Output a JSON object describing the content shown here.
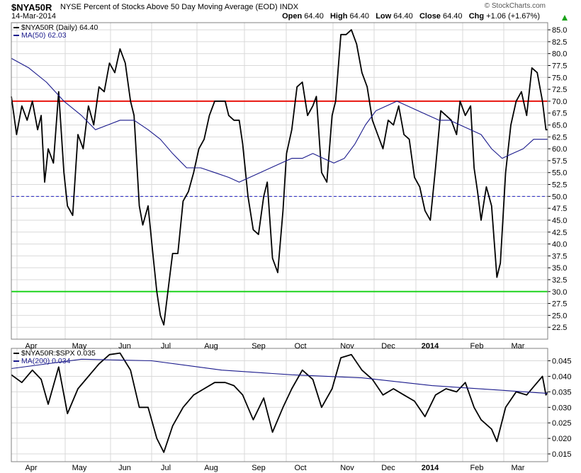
{
  "header": {
    "symbol": "$NYA50R",
    "description": "NYSE Percent of Stocks Above 50 Day Moving Average (EOD)  INDX",
    "date": "14-Mar-2014",
    "brand": "© StockCharts.com",
    "open_label": "Open",
    "open": "64.40",
    "high_label": "High",
    "high": "64.40",
    "low_label": "Low",
    "low": "64.40",
    "close_label": "Close",
    "close": "64.40",
    "chg_label": "Chg",
    "chg": "+1.06 (+1.67%)"
  },
  "colors": {
    "price": "#000000",
    "ma": "#1a1a8c",
    "upper": "#e8140e",
    "lower": "#1ed41e",
    "mid": "#1f1fbf",
    "grid": "#d9d9d9"
  },
  "chart_data": [
    {
      "type": "line",
      "legend": [
        "$NYA50R (Daily) 64.40",
        "MA(50) 62.03"
      ],
      "x_labels": [
        "Apr",
        "May",
        "Jun",
        "Jul",
        "Aug",
        "Sep",
        "Oct",
        "Nov",
        "Dec",
        "2014",
        "Feb",
        "Mar"
      ],
      "ylim": [
        20,
        86.5
      ],
      "y_ticks": [
        "22.5",
        "25.0",
        "27.5",
        "30.0",
        "32.5",
        "35.0",
        "37.5",
        "40.0",
        "42.5",
        "45.0",
        "47.5",
        "50.0",
        "52.5",
        "55.0",
        "57.5",
        "60.0",
        "62.5",
        "65.0",
        "67.5",
        "70.0",
        "72.5",
        "75.0",
        "77.5",
        "80.0",
        "82.5",
        "85.0"
      ],
      "reference_lines": [
        {
          "value": 70,
          "color": "#e8140e",
          "style": "solid"
        },
        {
          "value": 50,
          "color": "#1f1fbf",
          "style": "dashed"
        },
        {
          "value": 30,
          "color": "#1ed41e",
          "style": "solid"
        }
      ],
      "series": [
        {
          "name": "$NYA50R (Daily)",
          "color": "#000000",
          "points": [
            [
              0,
              71
            ],
            [
              3,
              63
            ],
            [
              6,
              69
            ],
            [
              9,
              66
            ],
            [
              12,
              70
            ],
            [
              15,
              64
            ],
            [
              17,
              67
            ],
            [
              19,
              53
            ],
            [
              21,
              60
            ],
            [
              24,
              57
            ],
            [
              27,
              72
            ],
            [
              30,
              55
            ],
            [
              32,
              48
            ],
            [
              35,
              46
            ],
            [
              38,
              63
            ],
            [
              41,
              60
            ],
            [
              44,
              69
            ],
            [
              47,
              65
            ],
            [
              50,
              73
            ],
            [
              53,
              72
            ],
            [
              56,
              78
            ],
            [
              59,
              76
            ],
            [
              62,
              81
            ],
            [
              65,
              78
            ],
            [
              68,
              70
            ],
            [
              70,
              67
            ],
            [
              73,
              48
            ],
            [
              75,
              44
            ],
            [
              78,
              48
            ],
            [
              81,
              37
            ],
            [
              83,
              30
            ],
            [
              85,
              25
            ],
            [
              87,
              23
            ],
            [
              90,
              32
            ],
            [
              92,
              38
            ],
            [
              95,
              38
            ],
            [
              98,
              49
            ],
            [
              101,
              51
            ],
            [
              104,
              55
            ],
            [
              107,
              60
            ],
            [
              110,
              62
            ],
            [
              113,
              67
            ],
            [
              116,
              70
            ],
            [
              119,
              70
            ],
            [
              122,
              70
            ],
            [
              124,
              67
            ],
            [
              127,
              66
            ],
            [
              130,
              66
            ],
            [
              132,
              61
            ],
            [
              135,
              50
            ],
            [
              138,
              43
            ],
            [
              141,
              42
            ],
            [
              144,
              50
            ],
            [
              146,
              53
            ],
            [
              149,
              37
            ],
            [
              152,
              34
            ],
            [
              155,
              47
            ],
            [
              157,
              59
            ],
            [
              160,
              64
            ],
            [
              163,
              73
            ],
            [
              166,
              74
            ],
            [
              169,
              67
            ],
            [
              172,
              69
            ],
            [
              174,
              71
            ],
            [
              177,
              55
            ],
            [
              180,
              53
            ],
            [
              183,
              67
            ],
            [
              185,
              70
            ],
            [
              188,
              84
            ],
            [
              191,
              84
            ],
            [
              194,
              85
            ],
            [
              197,
              82
            ],
            [
              200,
              76
            ],
            [
              203,
              73
            ],
            [
              206,
              66
            ],
            [
              209,
              63
            ],
            [
              212,
              60
            ],
            [
              215,
              66
            ],
            [
              218,
              65
            ],
            [
              221,
              69
            ],
            [
              224,
              63
            ],
            [
              227,
              62
            ],
            [
              230,
              54
            ],
            [
              233,
              52
            ],
            [
              236,
              47
            ],
            [
              239,
              45
            ],
            [
              242,
              56
            ],
            [
              245,
              68
            ],
            [
              248,
              67
            ],
            [
              251,
              66
            ],
            [
              254,
              63
            ],
            [
              256,
              70
            ],
            [
              259,
              67
            ],
            [
              262,
              69
            ],
            [
              264,
              56
            ],
            [
              266,
              51
            ],
            [
              268,
              45
            ],
            [
              271,
              52
            ],
            [
              274,
              48
            ],
            [
              277,
              33
            ],
            [
              279,
              36
            ],
            [
              282,
              55
            ],
            [
              285,
              65
            ],
            [
              288,
              70
            ],
            [
              291,
              72
            ],
            [
              294,
              67
            ],
            [
              297,
              77
            ],
            [
              300,
              76
            ],
            [
              303,
              70
            ],
            [
              305,
              64
            ],
            [
              306,
              64
            ]
          ]
        },
        {
          "name": "MA(50)",
          "color": "#1a1a8c",
          "points": [
            [
              0,
              79
            ],
            [
              10,
              77
            ],
            [
              20,
              74
            ],
            [
              30,
              70
            ],
            [
              40,
              67
            ],
            [
              48,
              64
            ],
            [
              55,
              65
            ],
            [
              62,
              66
            ],
            [
              70,
              66
            ],
            [
              78,
              64
            ],
            [
              85,
              62
            ],
            [
              92,
              59
            ],
            [
              100,
              56
            ],
            [
              108,
              56
            ],
            [
              116,
              55
            ],
            [
              124,
              54
            ],
            [
              130,
              53
            ],
            [
              136,
              54
            ],
            [
              142,
              55
            ],
            [
              148,
              56
            ],
            [
              154,
              57
            ],
            [
              160,
              58
            ],
            [
              166,
              58
            ],
            [
              172,
              59
            ],
            [
              178,
              58
            ],
            [
              184,
              57
            ],
            [
              190,
              58
            ],
            [
              196,
              61
            ],
            [
              202,
              65
            ],
            [
              208,
              68
            ],
            [
              214,
              69
            ],
            [
              220,
              70
            ],
            [
              226,
              69
            ],
            [
              232,
              68
            ],
            [
              238,
              67
            ],
            [
              244,
              66
            ],
            [
              250,
              66
            ],
            [
              256,
              65
            ],
            [
              262,
              64
            ],
            [
              268,
              63
            ],
            [
              274,
              60
            ],
            [
              280,
              58
            ],
            [
              286,
              59
            ],
            [
              292,
              60
            ],
            [
              298,
              62
            ],
            [
              304,
              62
            ],
            [
              306,
              62
            ]
          ]
        }
      ]
    },
    {
      "type": "line",
      "legend": [
        "$NYA50R:$SPX 0.035",
        "MA(200) 0.034"
      ],
      "x_labels": [
        "Apr",
        "May",
        "Jun",
        "Jul",
        "Aug",
        "Sep",
        "Oct",
        "Nov",
        "Dec",
        "2014",
        "Feb",
        "Mar"
      ],
      "ylim": [
        0.0125,
        0.049
      ],
      "y_ticks": [
        "0.015",
        "0.020",
        "0.025",
        "0.030",
        "0.035",
        "0.040",
        "0.045"
      ],
      "series": [
        {
          "name": "$NYA50R:$SPX",
          "color": "#000000",
          "points": [
            [
              0,
              0.0405
            ],
            [
              6,
              0.038
            ],
            [
              12,
              0.042
            ],
            [
              17,
              0.039
            ],
            [
              21,
              0.031
            ],
            [
              27,
              0.043
            ],
            [
              32,
              0.028
            ],
            [
              38,
              0.036
            ],
            [
              44,
              0.04
            ],
            [
              50,
              0.044
            ],
            [
              56,
              0.047
            ],
            [
              62,
              0.0475
            ],
            [
              68,
              0.042
            ],
            [
              73,
              0.03
            ],
            [
              78,
              0.03
            ],
            [
              83,
              0.02
            ],
            [
              87,
              0.0155
            ],
            [
              92,
              0.024
            ],
            [
              98,
              0.03
            ],
            [
              104,
              0.034
            ],
            [
              110,
              0.036
            ],
            [
              116,
              0.038
            ],
            [
              122,
              0.038
            ],
            [
              127,
              0.037
            ],
            [
              132,
              0.034
            ],
            [
              138,
              0.026
            ],
            [
              144,
              0.033
            ],
            [
              149,
              0.022
            ],
            [
              155,
              0.03
            ],
            [
              160,
              0.036
            ],
            [
              166,
              0.042
            ],
            [
              172,
              0.039
            ],
            [
              177,
              0.03
            ],
            [
              183,
              0.036
            ],
            [
              188,
              0.046
            ],
            [
              194,
              0.047
            ],
            [
              200,
              0.042
            ],
            [
              206,
              0.039
            ],
            [
              212,
              0.034
            ],
            [
              218,
              0.036
            ],
            [
              224,
              0.034
            ],
            [
              230,
              0.032
            ],
            [
              236,
              0.027
            ],
            [
              242,
              0.034
            ],
            [
              248,
              0.036
            ],
            [
              254,
              0.035
            ],
            [
              259,
              0.038
            ],
            [
              264,
              0.03
            ],
            [
              268,
              0.026
            ],
            [
              274,
              0.023
            ],
            [
              277,
              0.019
            ],
            [
              282,
              0.03
            ],
            [
              288,
              0.035
            ],
            [
              294,
              0.034
            ],
            [
              300,
              0.038
            ],
            [
              303,
              0.04
            ],
            [
              305,
              0.034
            ],
            [
              306,
              0.035
            ]
          ]
        },
        {
          "name": "MA(200)",
          "color": "#1a1a8c",
          "points": [
            [
              0,
              0.0425
            ],
            [
              40,
              0.0455
            ],
            [
              80,
              0.045
            ],
            [
              120,
              0.042
            ],
            [
              160,
              0.0405
            ],
            [
              200,
              0.0395
            ],
            [
              240,
              0.037
            ],
            [
              280,
              0.0355
            ],
            [
              306,
              0.0345
            ]
          ]
        }
      ]
    }
  ]
}
